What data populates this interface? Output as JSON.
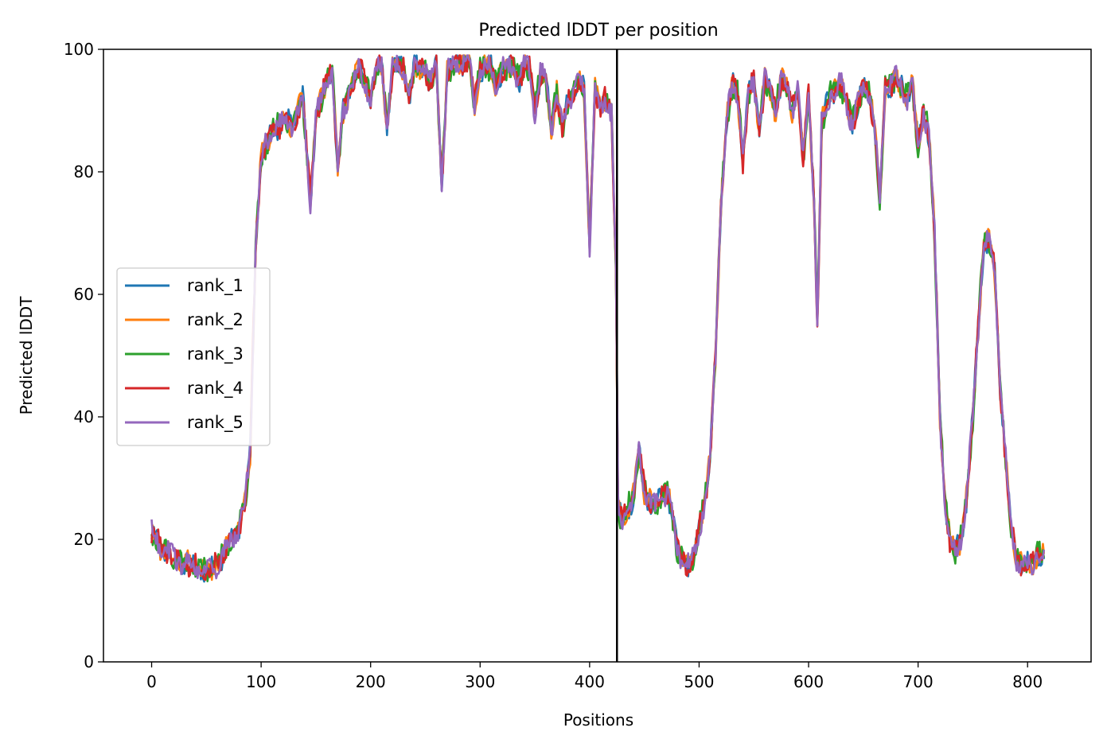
{
  "chart_data": {
    "type": "line",
    "title": "Predicted lDDT per position",
    "xlabel": "Positions",
    "ylabel": "Predicted lDDT",
    "xlim": [
      -44,
      858
    ],
    "ylim": [
      0,
      100
    ],
    "xticks": [
      0,
      100,
      200,
      300,
      400,
      500,
      600,
      700,
      800
    ],
    "yticks": [
      0,
      20,
      40,
      60,
      80,
      100
    ],
    "grid": false,
    "legend_position": "center-left",
    "chain_boundary_x": 425,
    "x_max": 815,
    "series": [
      {
        "name": "rank_1",
        "color": "#1f77b4"
      },
      {
        "name": "rank_2",
        "color": "#ff7f0e"
      },
      {
        "name": "rank_3",
        "color": "#2ca02c"
      },
      {
        "name": "rank_4",
        "color": "#d62728"
      },
      {
        "name": "rank_5",
        "color": "#9467bd"
      }
    ],
    "base_profile": [
      [
        0,
        21
      ],
      [
        10,
        18.5
      ],
      [
        20,
        17
      ],
      [
        30,
        16
      ],
      [
        40,
        15.5
      ],
      [
        50,
        15
      ],
      [
        55,
        15
      ],
      [
        60,
        16
      ],
      [
        70,
        19
      ],
      [
        78,
        21
      ],
      [
        85,
        26
      ],
      [
        90,
        34
      ],
      [
        95,
        68
      ],
      [
        100,
        82
      ],
      [
        110,
        87
      ],
      [
        120,
        88
      ],
      [
        130,
        88
      ],
      [
        138,
        92
      ],
      [
        145,
        75
      ],
      [
        150,
        89
      ],
      [
        160,
        95
      ],
      [
        165,
        97
      ],
      [
        170,
        80
      ],
      [
        175,
        90
      ],
      [
        180,
        93
      ],
      [
        190,
        97
      ],
      [
        200,
        92
      ],
      [
        205,
        97
      ],
      [
        210,
        98
      ],
      [
        215,
        87
      ],
      [
        220,
        97
      ],
      [
        230,
        97
      ],
      [
        235,
        92
      ],
      [
        240,
        97
      ],
      [
        250,
        97
      ],
      [
        255,
        94
      ],
      [
        260,
        97
      ],
      [
        265,
        78
      ],
      [
        270,
        96
      ],
      [
        280,
        98
      ],
      [
        290,
        98
      ],
      [
        295,
        91
      ],
      [
        300,
        97
      ],
      [
        310,
        97
      ],
      [
        315,
        94
      ],
      [
        320,
        97
      ],
      [
        330,
        97
      ],
      [
        335,
        95
      ],
      [
        340,
        97
      ],
      [
        345,
        97
      ],
      [
        350,
        90
      ],
      [
        355,
        96
      ],
      [
        360,
        95
      ],
      [
        365,
        87
      ],
      [
        370,
        93
      ],
      [
        375,
        87
      ],
      [
        380,
        91
      ],
      [
        385,
        93
      ],
      [
        390,
        95
      ],
      [
        395,
        93
      ],
      [
        400,
        68
      ],
      [
        405,
        94
      ],
      [
        410,
        90
      ],
      [
        415,
        92
      ],
      [
        420,
        90
      ],
      [
        424,
        65
      ],
      [
        426,
        25
      ],
      [
        430,
        23
      ],
      [
        440,
        27
      ],
      [
        445,
        34
      ],
      [
        450,
        28
      ],
      [
        460,
        25
      ],
      [
        470,
        28
      ],
      [
        475,
        25
      ],
      [
        480,
        18
      ],
      [
        490,
        16
      ],
      [
        495,
        17
      ],
      [
        500,
        22
      ],
      [
        505,
        26
      ],
      [
        510,
        33
      ],
      [
        515,
        50
      ],
      [
        520,
        75
      ],
      [
        525,
        88
      ],
      [
        530,
        94
      ],
      [
        535,
        93
      ],
      [
        540,
        82
      ],
      [
        545,
        93
      ],
      [
        550,
        95
      ],
      [
        555,
        87
      ],
      [
        560,
        95
      ],
      [
        565,
        93
      ],
      [
        570,
        90
      ],
      [
        575,
        95
      ],
      [
        580,
        94
      ],
      [
        585,
        90
      ],
      [
        590,
        94
      ],
      [
        595,
        82
      ],
      [
        600,
        93
      ],
      [
        605,
        75
      ],
      [
        608,
        55
      ],
      [
        612,
        88
      ],
      [
        620,
        93
      ],
      [
        630,
        94
      ],
      [
        640,
        88
      ],
      [
        650,
        94
      ],
      [
        655,
        93
      ],
      [
        660,
        88
      ],
      [
        665,
        75
      ],
      [
        670,
        94
      ],
      [
        680,
        95
      ],
      [
        690,
        92
      ],
      [
        695,
        94
      ],
      [
        700,
        84
      ],
      [
        705,
        90
      ],
      [
        710,
        86
      ],
      [
        715,
        70
      ],
      [
        720,
        40
      ],
      [
        725,
        25
      ],
      [
        730,
        19
      ],
      [
        735,
        18
      ],
      [
        740,
        21
      ],
      [
        745,
        28
      ],
      [
        750,
        40
      ],
      [
        755,
        55
      ],
      [
        760,
        68
      ],
      [
        765,
        69
      ],
      [
        770,
        64
      ],
      [
        775,
        45
      ],
      [
        780,
        33
      ],
      [
        785,
        22
      ],
      [
        790,
        17
      ],
      [
        795,
        16
      ],
      [
        800,
        16
      ],
      [
        805,
        16
      ],
      [
        810,
        18
      ],
      [
        815,
        17
      ]
    ]
  }
}
